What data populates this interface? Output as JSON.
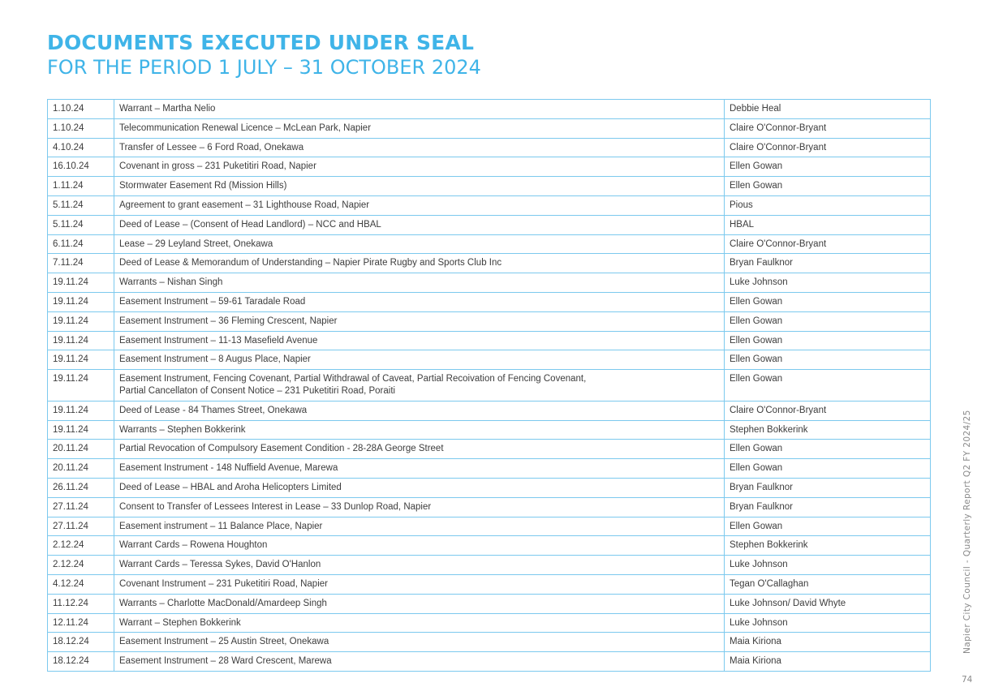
{
  "heading": {
    "title": "DOCUMENTS EXECUTED UNDER SEAL",
    "subtitle": "FOR THE PERIOD 1 JULY – 31 OCTOBER 2024"
  },
  "rows": [
    {
      "date": "1.10.24",
      "description": "Warrant – Martha Nelio",
      "signed_by": "Debbie Heal"
    },
    {
      "date": "1.10.24",
      "description": "Telecommunication Renewal Licence – McLean Park, Napier",
      "signed_by": "Claire O'Connor-Bryant"
    },
    {
      "date": "4.10.24",
      "description": "Transfer of Lessee – 6 Ford Road, Onekawa",
      "signed_by": "Claire O'Connor-Bryant"
    },
    {
      "date": "16.10.24",
      "description": "Covenant in gross – 231 Puketitiri Road, Napier",
      "signed_by": "Ellen Gowan"
    },
    {
      "date": "1.11.24",
      "description": "Stormwater Easement Rd (Mission Hills)",
      "signed_by": "Ellen Gowan"
    },
    {
      "date": "5.11.24",
      "description": "Agreement to grant easement – 31 Lighthouse Road, Napier",
      "signed_by": "Pious"
    },
    {
      "date": "5.11.24",
      "description": "Deed of Lease – (Consent of Head Landlord) – NCC and HBAL",
      "signed_by": "HBAL"
    },
    {
      "date": "6.11.24",
      "description": "Lease – 29 Leyland Street, Onekawa",
      "signed_by": "Claire O'Connor-Bryant"
    },
    {
      "date": "7.11.24",
      "description": "Deed of Lease & Memorandum of Understanding – Napier Pirate Rugby and Sports Club Inc",
      "signed_by": "Bryan Faulknor"
    },
    {
      "date": "19.11.24",
      "description": "Warrants – Nishan Singh",
      "signed_by": "Luke Johnson"
    },
    {
      "date": "19.11.24",
      "description": "Easement Instrument – 59-61 Taradale Road",
      "signed_by": "Ellen Gowan"
    },
    {
      "date": "19.11.24",
      "description": "Easement Instrument – 36 Fleming Crescent, Napier",
      "signed_by": "Ellen Gowan"
    },
    {
      "date": "19.11.24",
      "description": "Easement Instrument – 11-13 Masefield Avenue",
      "signed_by": "Ellen Gowan"
    },
    {
      "date": "19.11.24",
      "description": "Easement Instrument – 8 Augus Place, Napier",
      "signed_by": "Ellen Gowan"
    },
    {
      "date": "19.11.24",
      "description": "Easement Instrument, Fencing Covenant, Partial Withdrawal of Caveat, Partial Recoivation of Fencing Covenant,",
      "description2": "Partial Cancellaton of Consent Notice – 231 Puketitiri Road, Poraiti",
      "signed_by": "Ellen Gowan"
    },
    {
      "date": "19.11.24",
      "description": "Deed of Lease - 84 Thames Street, Onekawa",
      "signed_by": "Claire O'Connor-Bryant"
    },
    {
      "date": "19.11.24",
      "description": "Warrants – Stephen Bokkerink",
      "signed_by": "Stephen Bokkerink"
    },
    {
      "date": "20.11.24",
      "description": "Partial Revocation of Compulsory Easement Condition - 28-28A George Street",
      "signed_by": "Ellen Gowan"
    },
    {
      "date": "20.11.24",
      "description": "Easement Instrument - 148 Nuffield Avenue, Marewa",
      "signed_by": "Ellen Gowan"
    },
    {
      "date": "26.11.24",
      "description": "Deed of Lease – HBAL and Aroha Helicopters Limited",
      "signed_by": "Bryan Faulknor"
    },
    {
      "date": "27.11.24",
      "description": "Consent to Transfer of Lessees Interest in Lease – 33 Dunlop Road, Napier",
      "signed_by": "Bryan Faulknor"
    },
    {
      "date": "27.11.24",
      "description": "Easement instrument – 11 Balance Place, Napier",
      "signed_by": "Ellen Gowan"
    },
    {
      "date": "2.12.24",
      "description": "Warrant Cards – Rowena Houghton",
      "signed_by": "Stephen Bokkerink"
    },
    {
      "date": "2.12.24",
      "description": "Warrant Cards – Teressa Sykes, David O'Hanlon",
      "signed_by": "Luke Johnson"
    },
    {
      "date": "4.12.24",
      "description": "Covenant Instrument – 231 Puketitiri Road, Napier",
      "signed_by": "Tegan O'Callaghan"
    },
    {
      "date": "11.12.24",
      "description": "Warrants – Charlotte MacDonald/Amardeep Singh",
      "signed_by": "Luke Johnson/ David Whyte"
    },
    {
      "date": "12.11.24",
      "description": "Warrant – Stephen Bokkerink",
      "signed_by": "Luke Johnson"
    },
    {
      "date": "18.12.24",
      "description": "Easement Instrument – 25 Austin Street, Onekawa",
      "signed_by": "Maia Kiriona"
    },
    {
      "date": "18.12.24",
      "description": "Easement Instrument – 28 Ward Crescent, Marewa",
      "signed_by": "Maia Kiriona"
    }
  ],
  "footer": {
    "side_text": "Napier City Council - Quarterly Report Q2 FY 2024/25",
    "page_number": "74"
  }
}
